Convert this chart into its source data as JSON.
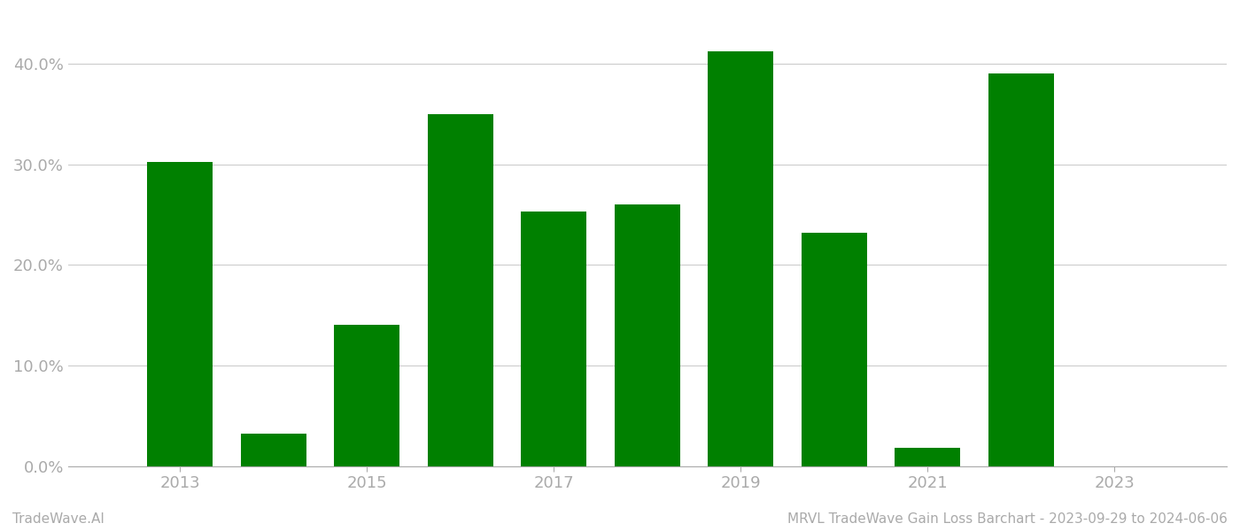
{
  "years": [
    2013,
    2014,
    2015,
    2016,
    2017,
    2018,
    2019,
    2020,
    2021,
    2022
  ],
  "values": [
    0.302,
    0.032,
    0.14,
    0.35,
    0.253,
    0.26,
    0.412,
    0.232,
    0.018,
    0.39
  ],
  "bar_color": "#008000",
  "footer_left": "TradeWave.AI",
  "footer_right": "MRVL TradeWave Gain Loss Barchart - 2023-09-29 to 2024-06-06",
  "xtick_labels": [
    "2013",
    "2015",
    "2017",
    "2019",
    "2021",
    "2023"
  ],
  "xtick_positions": [
    2013,
    2015,
    2017,
    2019,
    2021,
    2023
  ],
  "ylim": [
    0,
    0.45
  ],
  "ytick_positions": [
    0.0,
    0.1,
    0.2,
    0.3,
    0.4
  ],
  "ytick_labels": [
    "0.0%",
    "10.0%",
    "20.0%",
    "30.0%",
    "40.0%"
  ],
  "xlim_left": 2011.8,
  "xlim_right": 2024.2,
  "background_color": "#ffffff",
  "grid_color": "#cccccc",
  "label_color": "#aaaaaa",
  "footer_fontsize": 11,
  "tick_fontsize": 13,
  "bar_width": 0.7
}
